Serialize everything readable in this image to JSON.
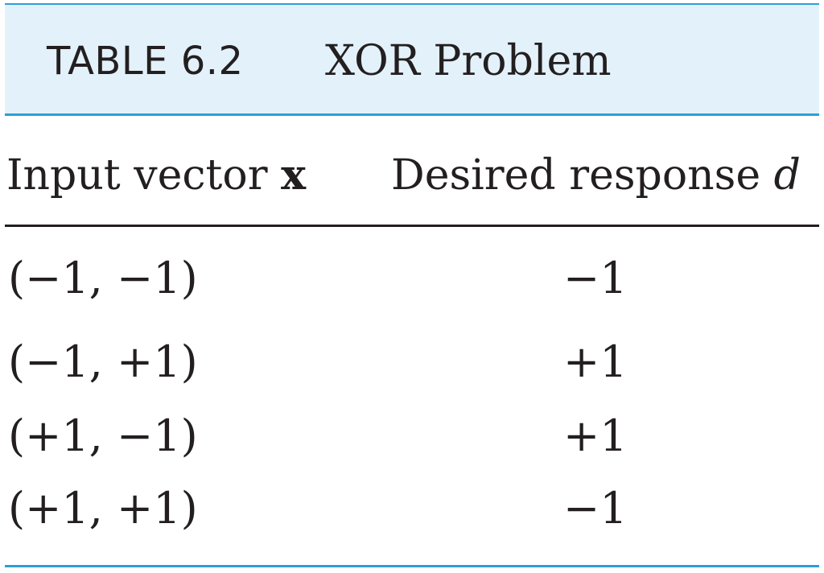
{
  "caption": {
    "label": "TABLE 6.2",
    "title": "XOR Problem"
  },
  "table": {
    "columns": [
      {
        "text": "Input vector ",
        "symbol": "x"
      },
      {
        "text": "Desired response ",
        "symbol": "d"
      }
    ],
    "rows": [
      {
        "input": "(−1, −1)",
        "response": "−1"
      },
      {
        "input": "(−1, +1)",
        "response": "+1"
      },
      {
        "input": "(+1, −1)",
        "response": "+1"
      },
      {
        "input": "(+1, +1)",
        "response": "−1"
      }
    ]
  },
  "colors": {
    "caption_band": "#e3f1fa",
    "rule_blue": "#2a9fd8",
    "text": "#231f20"
  }
}
